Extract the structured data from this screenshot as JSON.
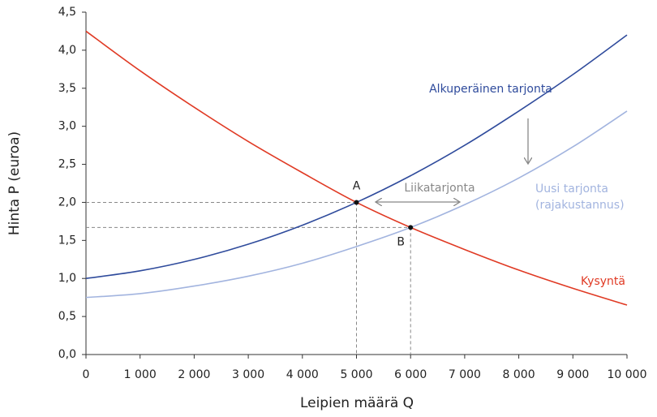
{
  "chart_data": {
    "type": "line",
    "xlabel": "Leipien määrä Q",
    "ylabel": "Hinta P (euroa)",
    "x": [
      0,
      1000,
      2000,
      3000,
      4000,
      5000,
      6000,
      7000,
      8000,
      9000,
      10000
    ],
    "series": [
      {
        "name": "Kysyntä",
        "color": "#e03a24",
        "values": [
          4.25,
          3.73,
          3.25,
          2.8,
          2.39,
          2.0,
          1.67,
          1.38,
          1.11,
          0.87,
          0.65
        ]
      },
      {
        "name": "Alkuperäinen tarjonta",
        "color": "#2f4b9c",
        "values": [
          1.0,
          1.1,
          1.25,
          1.45,
          1.7,
          2.0,
          2.35,
          2.75,
          3.2,
          3.68,
          4.2
        ]
      },
      {
        "name": "Uusi tarjonta",
        "color": "#a2b4df",
        "values": [
          0.75,
          0.8,
          0.9,
          1.03,
          1.2,
          1.42,
          1.67,
          1.97,
          2.32,
          2.73,
          3.2
        ]
      }
    ],
    "points": [
      {
        "label": "A",
        "x": 5000,
        "y": 2.0
      },
      {
        "label": "B",
        "x": 6000,
        "y": 1.67
      }
    ],
    "annotations": {
      "excess_supply": "Liikatarjonta",
      "marginal_cost": "(rajakustannus)"
    },
    "xlim": [
      0,
      10000
    ],
    "xticks": [
      0,
      {
        "value": 1000,
        "label": "1 000"
      },
      {
        "value": 2000,
        "label": "2 000"
      },
      {
        "value": 3000,
        "label": "3 000"
      },
      {
        "value": 4000,
        "label": "4 000"
      },
      {
        "value": 5000,
        "label": "5 000"
      },
      {
        "value": 6000,
        "label": "6 000"
      },
      {
        "value": 7000,
        "label": "7 000"
      },
      {
        "value": 8000,
        "label": "8 000"
      },
      {
        "value": 9000,
        "label": "9 000"
      },
      {
        "value": 10000,
        "label": "10 000"
      }
    ],
    "ylim": [
      0,
      4.5
    ],
    "yticks": [
      {
        "value": 0,
        "label": "0,0"
      },
      {
        "value": 0.5,
        "label": "0,5"
      },
      {
        "value": 1,
        "label": "1,0"
      },
      {
        "value": 1.5,
        "label": "1,5"
      },
      {
        "value": 2,
        "label": "2,0"
      },
      {
        "value": 2.5,
        "label": "2,5"
      },
      {
        "value": 3,
        "label": "3,0"
      },
      {
        "value": 3.5,
        "label": "3,5"
      },
      {
        "value": 4,
        "label": "4,0"
      },
      {
        "value": 4.5,
        "label": "4,5"
      }
    ],
    "grid": false
  }
}
